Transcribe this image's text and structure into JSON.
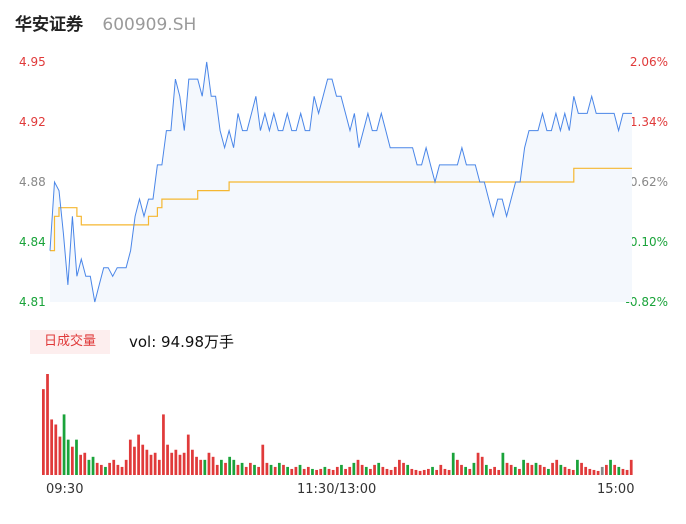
{
  "header": {
    "name": "华安证券",
    "code": "600909.SH"
  },
  "colors": {
    "price_line": "#4a86e8",
    "avg_line": "#f5b731",
    "up": "#e03a3a",
    "down": "#1aa33a",
    "flat": "#888888",
    "area_fill": "#f4f8fd"
  },
  "volume": {
    "badge": "日成交量",
    "label": "vol: 94.98万手"
  },
  "chart_data": [
    {
      "type": "line",
      "title": "",
      "y_left_ticks": [
        "4.95",
        "4.92",
        "4.88",
        "4.84",
        "4.81"
      ],
      "y_right_ticks": [
        "2.06%",
        "1.34%",
        "0.62%",
        "-0.10%",
        "-0.82%"
      ],
      "ylim": [
        4.81,
        4.95
      ],
      "x_ticks": [
        "09:30",
        "11:30/13:00",
        "15:00"
      ],
      "series": [
        {
          "name": "",
          "role": "price",
          "values": [
            4.84,
            4.88,
            4.875,
            4.85,
            4.82,
            4.86,
            4.825,
            4.835,
            4.825,
            4.825,
            4.81,
            4.82,
            4.83,
            4.83,
            4.825,
            4.83,
            4.83,
            4.83,
            4.84,
            4.86,
            4.87,
            4.86,
            4.87,
            4.87,
            4.89,
            4.89,
            4.91,
            4.91,
            4.94,
            4.93,
            4.91,
            4.94,
            4.94,
            4.94,
            4.93,
            4.95,
            4.93,
            4.93,
            4.91,
            4.9,
            4.91,
            4.9,
            4.92,
            4.91,
            4.91,
            4.92,
            4.93,
            4.91,
            4.92,
            4.91,
            4.92,
            4.91,
            4.91,
            4.92,
            4.91,
            4.91,
            4.92,
            4.91,
            4.91,
            4.93,
            4.92,
            4.93,
            4.94,
            4.94,
            4.93,
            4.93,
            4.92,
            4.91,
            4.92,
            4.9,
            4.91,
            4.92,
            4.91,
            4.91,
            4.92,
            4.91,
            4.9,
            4.9,
            4.9,
            4.9,
            4.9,
            4.9,
            4.89,
            4.89,
            4.9,
            4.89,
            4.88,
            4.89,
            4.89,
            4.89,
            4.89,
            4.89,
            4.9,
            4.89,
            4.89,
            4.89,
            4.88,
            4.88,
            4.87,
            4.86,
            4.87,
            4.87,
            4.86,
            4.87,
            4.88,
            4.88,
            4.9,
            4.91,
            4.91,
            4.91,
            4.92,
            4.91,
            4.91,
            4.92,
            4.91,
            4.92,
            4.91,
            4.93,
            4.92,
            4.92,
            4.92,
            4.93,
            4.92,
            4.92,
            4.92,
            4.92,
            4.92,
            4.91,
            4.92,
            4.92,
            4.92
          ]
        },
        {
          "name": "",
          "role": "average",
          "values": [
            4.84,
            4.86,
            4.865,
            4.865,
            4.865,
            4.865,
            4.86,
            4.855,
            4.855,
            4.855,
            4.855,
            4.855,
            4.855,
            4.855,
            4.855,
            4.855,
            4.855,
            4.855,
            4.855,
            4.855,
            4.855,
            4.855,
            4.86,
            4.86,
            4.865,
            4.87,
            4.87,
            4.87,
            4.87,
            4.87,
            4.87,
            4.87,
            4.87,
            4.875,
            4.875,
            4.875,
            4.875,
            4.875,
            4.875,
            4.875,
            4.88,
            4.88,
            4.88,
            4.88,
            4.88,
            4.88,
            4.88,
            4.88,
            4.88,
            4.88,
            4.88,
            4.88,
            4.88,
            4.88,
            4.88,
            4.88,
            4.88,
            4.88,
            4.88,
            4.88,
            4.88,
            4.88,
            4.88,
            4.88,
            4.88,
            4.88,
            4.88,
            4.88,
            4.88,
            4.88,
            4.88,
            4.88,
            4.88,
            4.88,
            4.88,
            4.88,
            4.88,
            4.88,
            4.88,
            4.88,
            4.88,
            4.88,
            4.88,
            4.88,
            4.88,
            4.88,
            4.88,
            4.88,
            4.88,
            4.88,
            4.88,
            4.88,
            4.88,
            4.88,
            4.88,
            4.88,
            4.88,
            4.88,
            4.88,
            4.88,
            4.88,
            4.88,
            4.88,
            4.88,
            4.88,
            4.88,
            4.88,
            4.88,
            4.88,
            4.88,
            4.88,
            4.88,
            4.88,
            4.88,
            4.88,
            4.88,
            4.88,
            4.888,
            4.888,
            4.888,
            4.888,
            4.888,
            4.888,
            4.888,
            4.888,
            4.888,
            4.888,
            4.888,
            4.888,
            4.888,
            4.888
          ]
        }
      ]
    },
    {
      "type": "bar",
      "title": "",
      "ylim": [
        0,
        100
      ],
      "volume_bars": [
        {
          "v": 85,
          "d": "up"
        },
        {
          "v": 100,
          "d": "up"
        },
        {
          "v": 55,
          "d": "up"
        },
        {
          "v": 50,
          "d": "up"
        },
        {
          "v": 38,
          "d": "up"
        },
        {
          "v": 60,
          "d": "down"
        },
        {
          "v": 35,
          "d": "down"
        },
        {
          "v": 28,
          "d": "up"
        },
        {
          "v": 35,
          "d": "down"
        },
        {
          "v": 20,
          "d": "up"
        },
        {
          "v": 22,
          "d": "up"
        },
        {
          "v": 15,
          "d": "down"
        },
        {
          "v": 18,
          "d": "down"
        },
        {
          "v": 12,
          "d": "up"
        },
        {
          "v": 10,
          "d": "up"
        },
        {
          "v": 8,
          "d": "down"
        },
        {
          "v": 12,
          "d": "up"
        },
        {
          "v": 15,
          "d": "up"
        },
        {
          "v": 10,
          "d": "up"
        },
        {
          "v": 8,
          "d": "up"
        },
        {
          "v": 15,
          "d": "up"
        },
        {
          "v": 35,
          "d": "up"
        },
        {
          "v": 28,
          "d": "up"
        },
        {
          "v": 40,
          "d": "up"
        },
        {
          "v": 30,
          "d": "up"
        },
        {
          "v": 25,
          "d": "up"
        },
        {
          "v": 20,
          "d": "up"
        },
        {
          "v": 22,
          "d": "up"
        },
        {
          "v": 15,
          "d": "up"
        },
        {
          "v": 60,
          "d": "up"
        },
        {
          "v": 30,
          "d": "up"
        },
        {
          "v": 22,
          "d": "up"
        },
        {
          "v": 25,
          "d": "up"
        },
        {
          "v": 20,
          "d": "up"
        },
        {
          "v": 22,
          "d": "up"
        },
        {
          "v": 40,
          "d": "up"
        },
        {
          "v": 25,
          "d": "up"
        },
        {
          "v": 18,
          "d": "up"
        },
        {
          "v": 15,
          "d": "up"
        },
        {
          "v": 15,
          "d": "down"
        },
        {
          "v": 22,
          "d": "up"
        },
        {
          "v": 18,
          "d": "up"
        },
        {
          "v": 10,
          "d": "up"
        },
        {
          "v": 15,
          "d": "down"
        },
        {
          "v": 12,
          "d": "up"
        },
        {
          "v": 18,
          "d": "down"
        },
        {
          "v": 15,
          "d": "down"
        },
        {
          "v": 10,
          "d": "up"
        },
        {
          "v": 12,
          "d": "down"
        },
        {
          "v": 8,
          "d": "up"
        },
        {
          "v": 12,
          "d": "up"
        },
        {
          "v": 10,
          "d": "down"
        },
        {
          "v": 8,
          "d": "up"
        },
        {
          "v": 30,
          "d": "up"
        },
        {
          "v": 12,
          "d": "up"
        },
        {
          "v": 10,
          "d": "down"
        },
        {
          "v": 8,
          "d": "up"
        },
        {
          "v": 12,
          "d": "down"
        },
        {
          "v": 10,
          "d": "up"
        },
        {
          "v": 8,
          "d": "down"
        },
        {
          "v": 6,
          "d": "up"
        },
        {
          "v": 8,
          "d": "up"
        },
        {
          "v": 10,
          "d": "down"
        },
        {
          "v": 6,
          "d": "up"
        },
        {
          "v": 8,
          "d": "up"
        },
        {
          "v": 6,
          "d": "down"
        },
        {
          "v": 5,
          "d": "up"
        },
        {
          "v": 6,
          "d": "up"
        },
        {
          "v": 8,
          "d": "down"
        },
        {
          "v": 6,
          "d": "up"
        },
        {
          "v": 5,
          "d": "up"
        },
        {
          "v": 8,
          "d": "up"
        },
        {
          "v": 10,
          "d": "down"
        },
        {
          "v": 6,
          "d": "up"
        },
        {
          "v": 8,
          "d": "up"
        },
        {
          "v": 12,
          "d": "down"
        },
        {
          "v": 15,
          "d": "up"
        },
        {
          "v": 10,
          "d": "up"
        },
        {
          "v": 8,
          "d": "down"
        },
        {
          "v": 6,
          "d": "up"
        },
        {
          "v": 10,
          "d": "up"
        },
        {
          "v": 12,
          "d": "down"
        },
        {
          "v": 8,
          "d": "up"
        },
        {
          "v": 6,
          "d": "up"
        },
        {
          "v": 5,
          "d": "up"
        },
        {
          "v": 8,
          "d": "up"
        },
        {
          "v": 15,
          "d": "up"
        },
        {
          "v": 12,
          "d": "up"
        },
        {
          "v": 10,
          "d": "down"
        },
        {
          "v": 6,
          "d": "up"
        },
        {
          "v": 5,
          "d": "up"
        },
        {
          "v": 4,
          "d": "up"
        },
        {
          "v": 5,
          "d": "up"
        },
        {
          "v": 6,
          "d": "up"
        },
        {
          "v": 8,
          "d": "down"
        },
        {
          "v": 5,
          "d": "up"
        },
        {
          "v": 10,
          "d": "up"
        },
        {
          "v": 6,
          "d": "up"
        },
        {
          "v": 5,
          "d": "up"
        },
        {
          "v": 22,
          "d": "down"
        },
        {
          "v": 15,
          "d": "up"
        },
        {
          "v": 10,
          "d": "up"
        },
        {
          "v": 8,
          "d": "down"
        },
        {
          "v": 6,
          "d": "up"
        },
        {
          "v": 12,
          "d": "down"
        },
        {
          "v": 22,
          "d": "up"
        },
        {
          "v": 18,
          "d": "up"
        },
        {
          "v": 10,
          "d": "down"
        },
        {
          "v": 6,
          "d": "up"
        },
        {
          "v": 8,
          "d": "up"
        },
        {
          "v": 5,
          "d": "up"
        },
        {
          "v": 22,
          "d": "down"
        },
        {
          "v": 12,
          "d": "up"
        },
        {
          "v": 10,
          "d": "up"
        },
        {
          "v": 8,
          "d": "down"
        },
        {
          "v": 6,
          "d": "up"
        },
        {
          "v": 15,
          "d": "down"
        },
        {
          "v": 12,
          "d": "up"
        },
        {
          "v": 10,
          "d": "up"
        },
        {
          "v": 12,
          "d": "down"
        },
        {
          "v": 10,
          "d": "up"
        },
        {
          "v": 8,
          "d": "up"
        },
        {
          "v": 6,
          "d": "down"
        },
        {
          "v": 12,
          "d": "up"
        },
        {
          "v": 15,
          "d": "up"
        },
        {
          "v": 10,
          "d": "down"
        },
        {
          "v": 8,
          "d": "up"
        },
        {
          "v": 6,
          "d": "up"
        },
        {
          "v": 5,
          "d": "up"
        },
        {
          "v": 15,
          "d": "down"
        },
        {
          "v": 12,
          "d": "up"
        },
        {
          "v": 8,
          "d": "up"
        },
        {
          "v": 6,
          "d": "up"
        },
        {
          "v": 5,
          "d": "up"
        },
        {
          "v": 4,
          "d": "up"
        },
        {
          "v": 8,
          "d": "flat"
        },
        {
          "v": 10,
          "d": "up"
        },
        {
          "v": 15,
          "d": "down"
        },
        {
          "v": 10,
          "d": "up"
        },
        {
          "v": 8,
          "d": "down"
        },
        {
          "v": 6,
          "d": "up"
        },
        {
          "v": 5,
          "d": "up"
        },
        {
          "v": 15,
          "d": "up"
        }
      ]
    }
  ]
}
